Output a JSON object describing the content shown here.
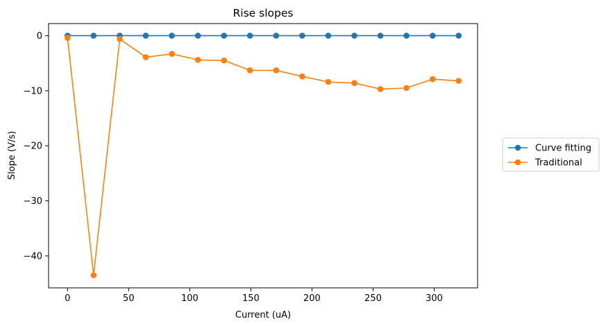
{
  "chart_data": {
    "type": "line",
    "title": "Rise slopes",
    "xlabel": "Current (uA)",
    "ylabel": "Slope (V/s)",
    "xlim": [
      -15.5,
      335.5
    ],
    "ylim": [
      -45.8,
      2.2
    ],
    "xticks": [
      0,
      50,
      100,
      150,
      200,
      250,
      300
    ],
    "yticks": [
      0,
      -10,
      -20,
      -30,
      -40
    ],
    "xtick_labels": [
      "0",
      "50",
      "100",
      "150",
      "200",
      "250",
      "300"
    ],
    "ytick_labels": [
      "0",
      "−10",
      "−20",
      "−30",
      "−40"
    ],
    "grid": false,
    "legend_position": "right",
    "x": [
      0,
      21.3,
      42.7,
      64,
      85.3,
      106.7,
      128,
      149.3,
      170.7,
      192,
      213.3,
      234.7,
      256,
      277.3,
      298.7,
      320
    ],
    "series": [
      {
        "name": "Curve fitting",
        "color": "#1f77b4",
        "marker": "circle",
        "values": [
          0,
          0,
          0,
          0,
          0,
          0,
          0,
          0,
          0,
          0,
          0,
          0,
          0,
          0,
          0,
          0
        ]
      },
      {
        "name": "Traditional",
        "color": "#ff7f0e",
        "marker": "circle",
        "values": [
          -0.4,
          -43.5,
          -0.6,
          -3.9,
          -3.3,
          -4.4,
          -4.5,
          -6.3,
          -6.3,
          -7.4,
          -8.4,
          -8.6,
          -9.7,
          -9.5,
          -7.9,
          -8.2
        ]
      }
    ]
  }
}
